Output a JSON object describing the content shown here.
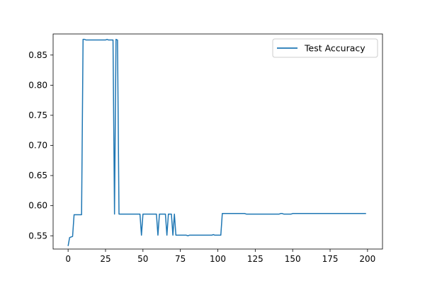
{
  "chart_data": {
    "type": "line",
    "title": "",
    "xlabel": "",
    "ylabel": "",
    "xlim": [
      -10,
      210
    ],
    "ylim": [
      0.528,
      0.885
    ],
    "xticks": [
      0,
      25,
      50,
      75,
      100,
      125,
      150,
      175,
      200
    ],
    "yticks": [
      0.55,
      0.6,
      0.65,
      0.7,
      0.75,
      0.8,
      0.85
    ],
    "ytick_labels": [
      "0.55",
      "0.60",
      "0.65",
      "0.70",
      "0.75",
      "0.80",
      "0.85"
    ],
    "grid": false,
    "legend_position": "upper right",
    "series": [
      {
        "name": "Test Accuracy",
        "color": "#1f77b4",
        "points": [
          [
            0,
            0.533
          ],
          [
            1,
            0.547
          ],
          [
            2,
            0.548
          ],
          [
            3,
            0.549
          ],
          [
            4,
            0.585
          ],
          [
            5,
            0.585
          ],
          [
            6,
            0.585
          ],
          [
            7,
            0.585
          ],
          [
            8,
            0.585
          ],
          [
            9,
            0.585
          ],
          [
            10,
            0.876
          ],
          [
            11,
            0.876
          ],
          [
            12,
            0.875
          ],
          [
            13,
            0.875
          ],
          [
            14,
            0.875
          ],
          [
            15,
            0.875
          ],
          [
            16,
            0.875
          ],
          [
            17,
            0.875
          ],
          [
            18,
            0.875
          ],
          [
            19,
            0.875
          ],
          [
            20,
            0.875
          ],
          [
            21,
            0.875
          ],
          [
            22,
            0.875
          ],
          [
            23,
            0.875
          ],
          [
            24,
            0.875
          ],
          [
            25,
            0.875
          ],
          [
            26,
            0.876
          ],
          [
            27,
            0.875
          ],
          [
            28,
            0.875
          ],
          [
            29,
            0.875
          ],
          [
            30,
            0.875
          ],
          [
            31,
            0.586
          ],
          [
            32,
            0.876
          ],
          [
            33,
            0.875
          ],
          [
            34,
            0.586
          ],
          [
            35,
            0.586
          ],
          [
            36,
            0.586
          ],
          [
            37,
            0.586
          ],
          [
            38,
            0.586
          ],
          [
            39,
            0.586
          ],
          [
            40,
            0.586
          ],
          [
            41,
            0.586
          ],
          [
            42,
            0.586
          ],
          [
            43,
            0.586
          ],
          [
            44,
            0.586
          ],
          [
            45,
            0.586
          ],
          [
            46,
            0.586
          ],
          [
            47,
            0.586
          ],
          [
            48,
            0.586
          ],
          [
            49,
            0.551
          ],
          [
            50,
            0.586
          ],
          [
            51,
            0.586
          ],
          [
            52,
            0.586
          ],
          [
            53,
            0.586
          ],
          [
            54,
            0.586
          ],
          [
            55,
            0.586
          ],
          [
            56,
            0.586
          ],
          [
            57,
            0.586
          ],
          [
            58,
            0.586
          ],
          [
            59,
            0.586
          ],
          [
            60,
            0.551
          ],
          [
            61,
            0.586
          ],
          [
            62,
            0.586
          ],
          [
            63,
            0.586
          ],
          [
            64,
            0.586
          ],
          [
            65,
            0.586
          ],
          [
            66,
            0.551
          ],
          [
            67,
            0.586
          ],
          [
            68,
            0.586
          ],
          [
            69,
            0.586
          ],
          [
            70,
            0.551
          ],
          [
            71,
            0.586
          ],
          [
            72,
            0.551
          ],
          [
            73,
            0.551
          ],
          [
            74,
            0.551
          ],
          [
            75,
            0.551
          ],
          [
            76,
            0.551
          ],
          [
            77,
            0.551
          ],
          [
            78,
            0.551
          ],
          [
            79,
            0.551
          ],
          [
            80,
            0.55
          ],
          [
            81,
            0.551
          ],
          [
            82,
            0.551
          ],
          [
            83,
            0.551
          ],
          [
            84,
            0.551
          ],
          [
            85,
            0.551
          ],
          [
            86,
            0.551
          ],
          [
            87,
            0.551
          ],
          [
            88,
            0.551
          ],
          [
            89,
            0.551
          ],
          [
            90,
            0.551
          ],
          [
            91,
            0.551
          ],
          [
            92,
            0.551
          ],
          [
            93,
            0.551
          ],
          [
            94,
            0.551
          ],
          [
            95,
            0.551
          ],
          [
            96,
            0.551
          ],
          [
            97,
            0.552
          ],
          [
            98,
            0.551
          ],
          [
            99,
            0.551
          ],
          [
            100,
            0.551
          ],
          [
            101,
            0.551
          ],
          [
            102,
            0.551
          ],
          [
            103,
            0.587
          ],
          [
            104,
            0.587
          ],
          [
            105,
            0.587
          ],
          [
            106,
            0.587
          ],
          [
            107,
            0.587
          ],
          [
            108,
            0.587
          ],
          [
            109,
            0.587
          ],
          [
            110,
            0.587
          ],
          [
            111,
            0.587
          ],
          [
            112,
            0.587
          ],
          [
            113,
            0.587
          ],
          [
            114,
            0.587
          ],
          [
            115,
            0.587
          ],
          [
            116,
            0.587
          ],
          [
            117,
            0.587
          ],
          [
            118,
            0.587
          ],
          [
            119,
            0.586
          ],
          [
            120,
            0.586
          ],
          [
            121,
            0.586
          ],
          [
            122,
            0.586
          ],
          [
            123,
            0.586
          ],
          [
            124,
            0.586
          ],
          [
            125,
            0.586
          ],
          [
            126,
            0.586
          ],
          [
            127,
            0.586
          ],
          [
            128,
            0.586
          ],
          [
            129,
            0.586
          ],
          [
            130,
            0.586
          ],
          [
            131,
            0.586
          ],
          [
            132,
            0.586
          ],
          [
            133,
            0.586
          ],
          [
            134,
            0.586
          ],
          [
            135,
            0.586
          ],
          [
            136,
            0.586
          ],
          [
            137,
            0.586
          ],
          [
            138,
            0.586
          ],
          [
            139,
            0.586
          ],
          [
            140,
            0.586
          ],
          [
            141,
            0.586
          ],
          [
            142,
            0.587
          ],
          [
            143,
            0.587
          ],
          [
            144,
            0.586
          ],
          [
            145,
            0.586
          ],
          [
            146,
            0.586
          ],
          [
            147,
            0.586
          ],
          [
            148,
            0.586
          ],
          [
            149,
            0.586
          ],
          [
            150,
            0.587
          ],
          [
            151,
            0.587
          ],
          [
            152,
            0.587
          ],
          [
            153,
            0.587
          ],
          [
            154,
            0.587
          ],
          [
            155,
            0.587
          ],
          [
            156,
            0.587
          ],
          [
            157,
            0.587
          ],
          [
            158,
            0.587
          ],
          [
            159,
            0.587
          ],
          [
            160,
            0.587
          ],
          [
            161,
            0.587
          ],
          [
            162,
            0.587
          ],
          [
            163,
            0.587
          ],
          [
            164,
            0.587
          ],
          [
            165,
            0.587
          ],
          [
            166,
            0.587
          ],
          [
            167,
            0.587
          ],
          [
            168,
            0.587
          ],
          [
            169,
            0.587
          ],
          [
            170,
            0.587
          ],
          [
            171,
            0.587
          ],
          [
            172,
            0.587
          ],
          [
            173,
            0.587
          ],
          [
            174,
            0.587
          ],
          [
            175,
            0.587
          ],
          [
            176,
            0.587
          ],
          [
            177,
            0.587
          ],
          [
            178,
            0.587
          ],
          [
            179,
            0.587
          ],
          [
            180,
            0.587
          ],
          [
            181,
            0.587
          ],
          [
            182,
            0.587
          ],
          [
            183,
            0.587
          ],
          [
            184,
            0.587
          ],
          [
            185,
            0.587
          ],
          [
            186,
            0.587
          ],
          [
            187,
            0.587
          ],
          [
            188,
            0.587
          ],
          [
            189,
            0.587
          ],
          [
            190,
            0.587
          ],
          [
            191,
            0.587
          ],
          [
            192,
            0.587
          ],
          [
            193,
            0.587
          ],
          [
            194,
            0.587
          ],
          [
            195,
            0.587
          ],
          [
            196,
            0.587
          ],
          [
            197,
            0.587
          ],
          [
            198,
            0.587
          ],
          [
            199,
            0.587
          ]
        ]
      }
    ]
  }
}
